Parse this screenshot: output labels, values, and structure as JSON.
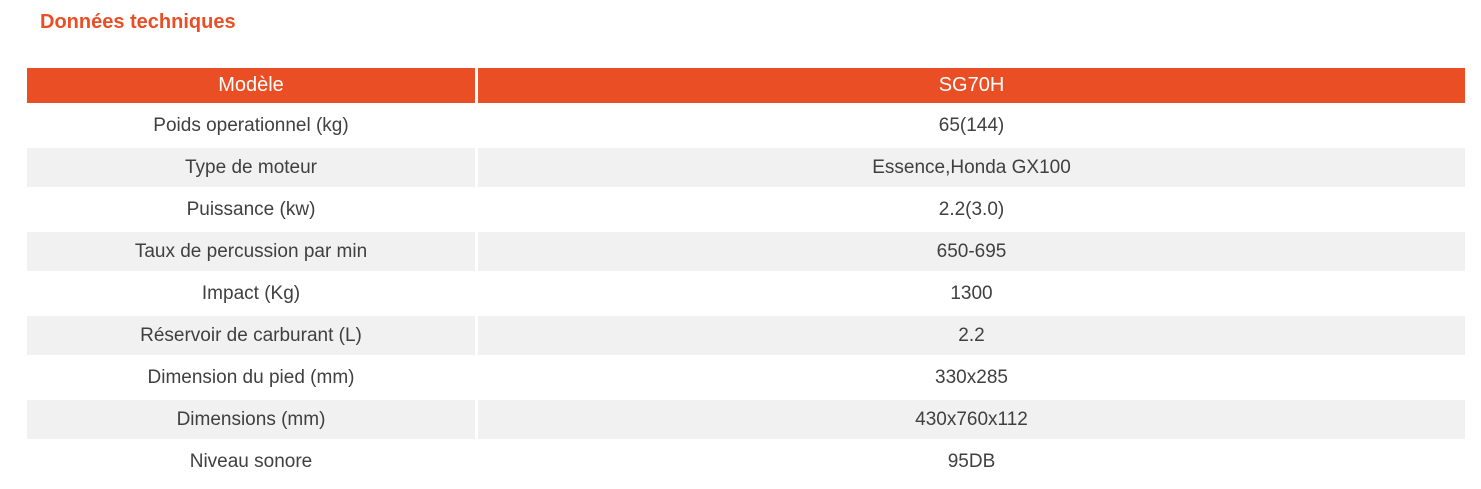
{
  "page": {
    "title": "Données techniques"
  },
  "colors": {
    "accent": "#ea4e25",
    "stripe": "#f1f1f1",
    "text": "#404040",
    "header_text": "#ffffff"
  },
  "table": {
    "header": {
      "model_label": "Modèle",
      "model_value": "SG70H"
    },
    "rows": [
      {
        "label": "Poids operationnel (kg)",
        "value": "65(144)"
      },
      {
        "label": "Type de moteur",
        "value": "Essence,Honda GX100"
      },
      {
        "label": "Puissance (kw)",
        "value": "2.2(3.0)"
      },
      {
        "label": "Taux de percussion par min",
        "value": "650-695"
      },
      {
        "label": "Impact (Kg)",
        "value": "1300"
      },
      {
        "label": "Réservoir de carburant (L)",
        "value": "2.2"
      },
      {
        "label": "Dimension du pied (mm)",
        "value": "330x285"
      },
      {
        "label": "Dimensions  (mm)",
        "value": "430x760x112"
      },
      {
        "label": "Niveau sonore",
        "value": "95DB"
      }
    ]
  }
}
